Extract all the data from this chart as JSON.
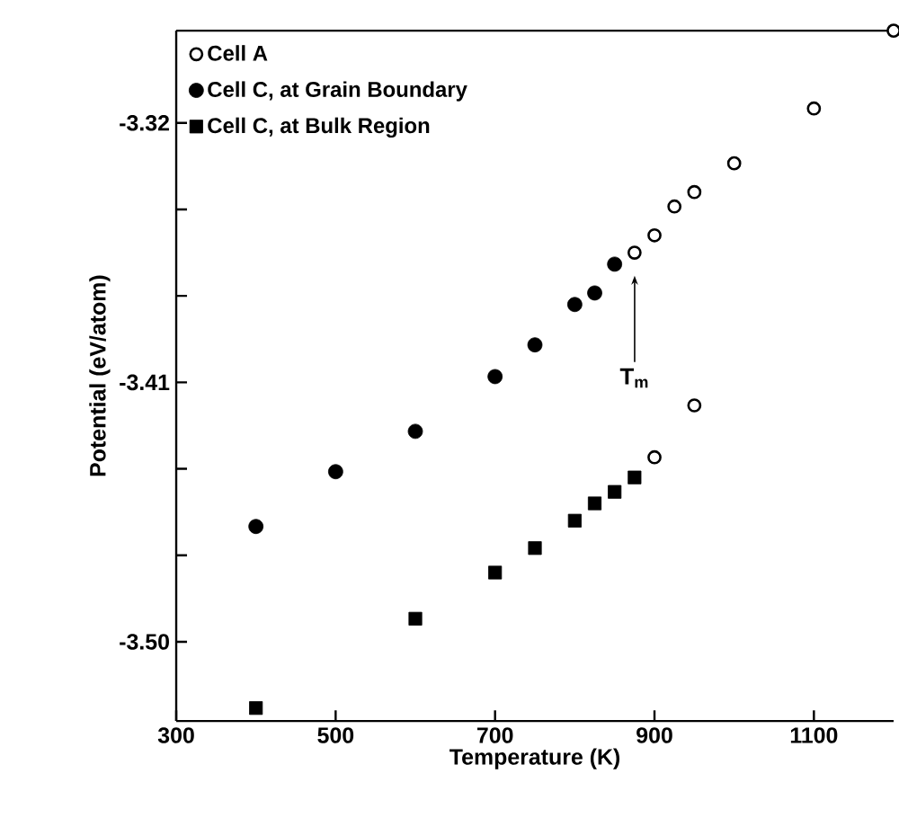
{
  "chart_data": {
    "type": "scatter",
    "xlabel": "Temperature (K)",
    "ylabel": "Potential (eV/atom)",
    "xlim": [
      300,
      1200
    ],
    "xticks": [
      300,
      500,
      700,
      900,
      1100
    ],
    "ylim": [
      -3.5275,
      -3.288
    ],
    "yticks": [
      -3.32,
      {
        "value": -3.35,
        "label": null
      },
      {
        "value": -3.38,
        "label": null
      },
      -3.41,
      {
        "value": -3.44,
        "label": null
      },
      {
        "value": -3.47,
        "label": null
      },
      {
        "value": -3.5,
        "label": "-3.50"
      }
    ],
    "grid": false,
    "legend": "top left",
    "series": [
      {
        "name": "Cell A",
        "color": "#000000",
        "marker": "open circle",
        "x": [
          875,
          900,
          925,
          950,
          1000,
          1100,
          1200,
          900,
          950
        ],
        "values": [
          -3.365,
          -3.359,
          -3.349,
          -3.344,
          -3.334,
          -3.315,
          -3.288,
          -3.436,
          -3.418
        ]
      },
      {
        "name": "Cell C, at Grain Boundary",
        "color": "#000000",
        "marker": "circle",
        "x": [
          400,
          500,
          600,
          700,
          750,
          800,
          825,
          850
        ],
        "values": [
          -3.46,
          -3.441,
          -3.427,
          -3.408,
          -3.397,
          -3.383,
          -3.379,
          -3.369
        ]
      },
      {
        "name": "Cell C, at Bulk Region",
        "color": "#000000",
        "marker": "square",
        "x": [
          400,
          600,
          700,
          750,
          800,
          825,
          850,
          875
        ],
        "values": [
          -3.523,
          -3.492,
          -3.476,
          -3.4675,
          -3.458,
          -3.452,
          -3.448,
          -3.443
        ]
      }
    ],
    "annotations": [
      "T$_{m}$"
    ]
  }
}
